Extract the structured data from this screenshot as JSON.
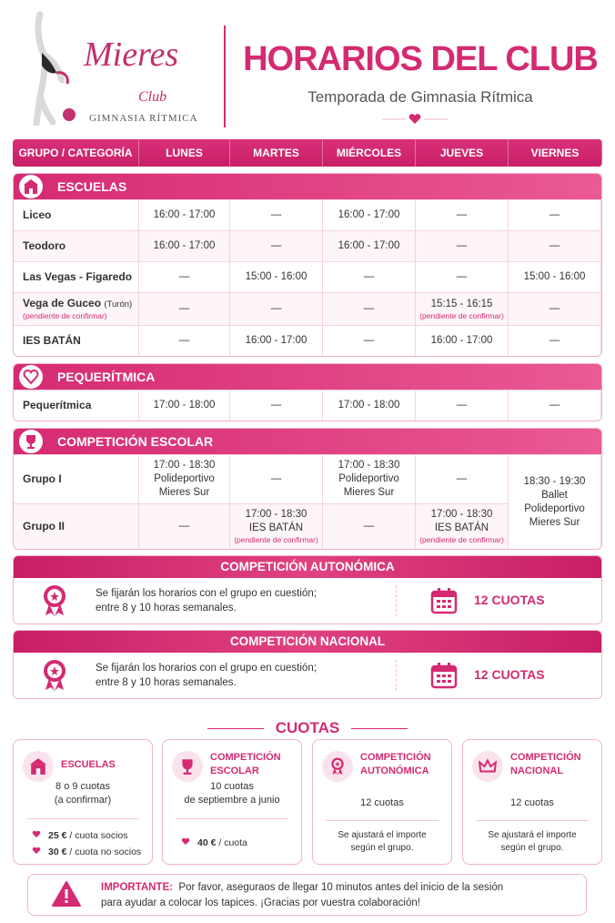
{
  "logo": {
    "name": "Mieres",
    "club": "Club",
    "subtitle": "GIMNASIA RÍTMICA"
  },
  "header": {
    "title": "HORARIOS DEL CLUB",
    "subtitle": "Temporada de Gimnasia Rítmica"
  },
  "table": {
    "columns": [
      "GRUPO / CATEGORÍA",
      "LUNES",
      "MARTES",
      "MIÉRCOLES",
      "JUEVES",
      "VIERNES"
    ],
    "sections": [
      {
        "title": "ESCUELAS",
        "rows": [
          [
            "Liceo",
            "16:00 - 17:00",
            "—",
            "16:00 - 17:00",
            "—",
            "—"
          ],
          [
            "Teodoro",
            "16:00 - 17:00",
            "—",
            "16:00 - 17:00",
            "—",
            "—"
          ],
          [
            "Las Vegas - Figaredo",
            "—",
            "15:00 - 16:00",
            "—",
            "—",
            "15:00 - 16:00"
          ],
          [
            {
              "text": "Vega de Guceo",
              "extra": "(Turón)",
              "note": "(pendiente de confirmar)"
            },
            "—",
            "—",
            "—",
            {
              "text": "15:15 - 16:15",
              "note": "(pendiente de confirmar)"
            },
            "—"
          ],
          [
            "IES BATÁN",
            "—",
            "16:00 - 17:00",
            "—",
            "16:00 - 17:00",
            "—"
          ]
        ]
      },
      {
        "title": "PEQUERÍTMICA",
        "rows": [
          [
            "Pequerítmica",
            "17:00 - 18:00",
            "—",
            "17:00 - 18:00",
            "—",
            "—"
          ]
        ]
      },
      {
        "title": "COMPETICIÓN ESCOLAR",
        "rows": [
          [
            "Grupo I",
            {
              "lines": [
                "17:00 - 18:30",
                "Polideportivo",
                "Mieres Sur"
              ]
            },
            "—",
            {
              "lines": [
                "17:00 - 18:30",
                "Polideportivo",
                "Mieres Sur"
              ]
            },
            "—",
            {
              "lines": [
                "18:30 - 19:30",
                "Ballet",
                "Polideportivo",
                "Mieres Sur"
              ],
              "rowspan": 2
            }
          ],
          [
            "Grupo II",
            "—",
            {
              "lines": [
                "17:00 - 18:30",
                "IES BATÁN"
              ],
              "note": "(pendiente de confirmar)"
            },
            "—",
            {
              "lines": [
                "17:00 - 18:30",
                "IES BATÁN"
              ],
              "note": "(pendiente de confirmar)"
            }
          ]
        ]
      }
    ]
  },
  "competitions": [
    {
      "title": "COMPETICIÓN AUTONÓMICA",
      "text": [
        "Se fijarán los horarios con el grupo en cuestión;",
        "entre 8 y 10 horas semanales."
      ],
      "fees": "12 CUOTAS"
    },
    {
      "title": "COMPETICIÓN NACIONAL",
      "text": [
        "Se fijarán los horarios con el grupo en cuestión;",
        "entre 8 y 10 horas semanales."
      ],
      "fees": "12 CUOTAS"
    }
  ],
  "fees": {
    "title": "CUOTAS",
    "cards": [
      {
        "title": "ESCUELAS",
        "details": [
          "8 o 9 cuotas",
          "(a confirmar)"
        ],
        "prices": [
          {
            "amount": "25 €",
            "unit": "/ cuota socios"
          },
          {
            "amount": "30 €",
            "unit": "/ cuota no socios"
          }
        ]
      },
      {
        "title": "COMPETICIÓN ESCOLAR",
        "details": [
          "10 cuotas",
          "de septiembre a junio"
        ],
        "prices": [
          {
            "amount": "40 €",
            "unit": "/ cuota"
          }
        ]
      },
      {
        "title": "COMPETICIÓN AUTONÓMICA",
        "details": [
          "12 cuotas"
        ],
        "note": [
          "Se ajustará el importe",
          "según el grupo."
        ]
      },
      {
        "title": "COMPETICIÓN NACIONAL",
        "details": [
          "12 cuotas"
        ],
        "note": [
          "Se ajustará el importe",
          "según el grupo."
        ]
      }
    ]
  },
  "notice": {
    "label": "IMPORTANTE:",
    "text": [
      "Por favor, aseguraos de llegar 10 minutos antes del inicio de la sesión",
      "para ayudar a colocar los tapices. ¡Gracias por vuestra colaboración!"
    ]
  }
}
